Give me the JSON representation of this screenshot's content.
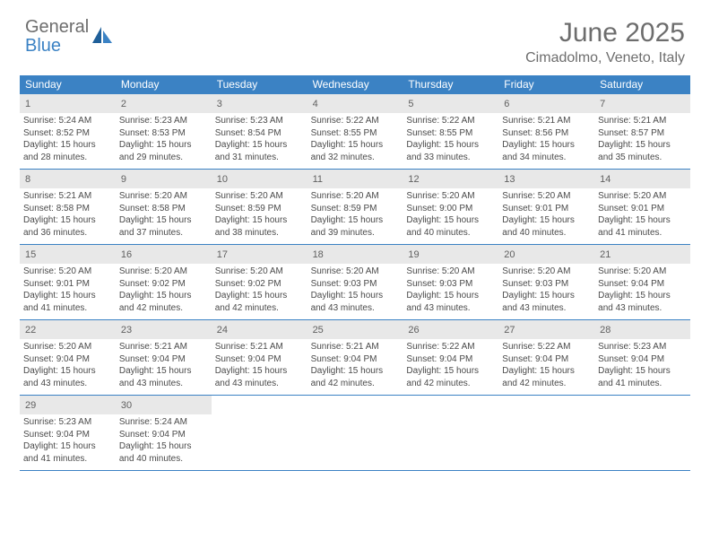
{
  "logo": {
    "text_general": "General",
    "text_blue": "Blue"
  },
  "title": "June 2025",
  "location": "Cimadolmo, Veneto, Italy",
  "colors": {
    "header_bar": "#3b82c4",
    "header_text": "#ffffff",
    "daynum_bg": "#e8e8e8",
    "daynum_text": "#606060",
    "info_text": "#4a4a4a",
    "title_text": "#6d6d6d",
    "rule": "#3b82c4"
  },
  "weekdays": [
    "Sunday",
    "Monday",
    "Tuesday",
    "Wednesday",
    "Thursday",
    "Friday",
    "Saturday"
  ],
  "days": [
    {
      "n": "1",
      "sunrise": "Sunrise: 5:24 AM",
      "sunset": "Sunset: 8:52 PM",
      "daylight": "Daylight: 15 hours and 28 minutes."
    },
    {
      "n": "2",
      "sunrise": "Sunrise: 5:23 AM",
      "sunset": "Sunset: 8:53 PM",
      "daylight": "Daylight: 15 hours and 29 minutes."
    },
    {
      "n": "3",
      "sunrise": "Sunrise: 5:23 AM",
      "sunset": "Sunset: 8:54 PM",
      "daylight": "Daylight: 15 hours and 31 minutes."
    },
    {
      "n": "4",
      "sunrise": "Sunrise: 5:22 AM",
      "sunset": "Sunset: 8:55 PM",
      "daylight": "Daylight: 15 hours and 32 minutes."
    },
    {
      "n": "5",
      "sunrise": "Sunrise: 5:22 AM",
      "sunset": "Sunset: 8:55 PM",
      "daylight": "Daylight: 15 hours and 33 minutes."
    },
    {
      "n": "6",
      "sunrise": "Sunrise: 5:21 AM",
      "sunset": "Sunset: 8:56 PM",
      "daylight": "Daylight: 15 hours and 34 minutes."
    },
    {
      "n": "7",
      "sunrise": "Sunrise: 5:21 AM",
      "sunset": "Sunset: 8:57 PM",
      "daylight": "Daylight: 15 hours and 35 minutes."
    },
    {
      "n": "8",
      "sunrise": "Sunrise: 5:21 AM",
      "sunset": "Sunset: 8:58 PM",
      "daylight": "Daylight: 15 hours and 36 minutes."
    },
    {
      "n": "9",
      "sunrise": "Sunrise: 5:20 AM",
      "sunset": "Sunset: 8:58 PM",
      "daylight": "Daylight: 15 hours and 37 minutes."
    },
    {
      "n": "10",
      "sunrise": "Sunrise: 5:20 AM",
      "sunset": "Sunset: 8:59 PM",
      "daylight": "Daylight: 15 hours and 38 minutes."
    },
    {
      "n": "11",
      "sunrise": "Sunrise: 5:20 AM",
      "sunset": "Sunset: 8:59 PM",
      "daylight": "Daylight: 15 hours and 39 minutes."
    },
    {
      "n": "12",
      "sunrise": "Sunrise: 5:20 AM",
      "sunset": "Sunset: 9:00 PM",
      "daylight": "Daylight: 15 hours and 40 minutes."
    },
    {
      "n": "13",
      "sunrise": "Sunrise: 5:20 AM",
      "sunset": "Sunset: 9:01 PM",
      "daylight": "Daylight: 15 hours and 40 minutes."
    },
    {
      "n": "14",
      "sunrise": "Sunrise: 5:20 AM",
      "sunset": "Sunset: 9:01 PM",
      "daylight": "Daylight: 15 hours and 41 minutes."
    },
    {
      "n": "15",
      "sunrise": "Sunrise: 5:20 AM",
      "sunset": "Sunset: 9:01 PM",
      "daylight": "Daylight: 15 hours and 41 minutes."
    },
    {
      "n": "16",
      "sunrise": "Sunrise: 5:20 AM",
      "sunset": "Sunset: 9:02 PM",
      "daylight": "Daylight: 15 hours and 42 minutes."
    },
    {
      "n": "17",
      "sunrise": "Sunrise: 5:20 AM",
      "sunset": "Sunset: 9:02 PM",
      "daylight": "Daylight: 15 hours and 42 minutes."
    },
    {
      "n": "18",
      "sunrise": "Sunrise: 5:20 AM",
      "sunset": "Sunset: 9:03 PM",
      "daylight": "Daylight: 15 hours and 43 minutes."
    },
    {
      "n": "19",
      "sunrise": "Sunrise: 5:20 AM",
      "sunset": "Sunset: 9:03 PM",
      "daylight": "Daylight: 15 hours and 43 minutes."
    },
    {
      "n": "20",
      "sunrise": "Sunrise: 5:20 AM",
      "sunset": "Sunset: 9:03 PM",
      "daylight": "Daylight: 15 hours and 43 minutes."
    },
    {
      "n": "21",
      "sunrise": "Sunrise: 5:20 AM",
      "sunset": "Sunset: 9:04 PM",
      "daylight": "Daylight: 15 hours and 43 minutes."
    },
    {
      "n": "22",
      "sunrise": "Sunrise: 5:20 AM",
      "sunset": "Sunset: 9:04 PM",
      "daylight": "Daylight: 15 hours and 43 minutes."
    },
    {
      "n": "23",
      "sunrise": "Sunrise: 5:21 AM",
      "sunset": "Sunset: 9:04 PM",
      "daylight": "Daylight: 15 hours and 43 minutes."
    },
    {
      "n": "24",
      "sunrise": "Sunrise: 5:21 AM",
      "sunset": "Sunset: 9:04 PM",
      "daylight": "Daylight: 15 hours and 43 minutes."
    },
    {
      "n": "25",
      "sunrise": "Sunrise: 5:21 AM",
      "sunset": "Sunset: 9:04 PM",
      "daylight": "Daylight: 15 hours and 42 minutes."
    },
    {
      "n": "26",
      "sunrise": "Sunrise: 5:22 AM",
      "sunset": "Sunset: 9:04 PM",
      "daylight": "Daylight: 15 hours and 42 minutes."
    },
    {
      "n": "27",
      "sunrise": "Sunrise: 5:22 AM",
      "sunset": "Sunset: 9:04 PM",
      "daylight": "Daylight: 15 hours and 42 minutes."
    },
    {
      "n": "28",
      "sunrise": "Sunrise: 5:23 AM",
      "sunset": "Sunset: 9:04 PM",
      "daylight": "Daylight: 15 hours and 41 minutes."
    },
    {
      "n": "29",
      "sunrise": "Sunrise: 5:23 AM",
      "sunset": "Sunset: 9:04 PM",
      "daylight": "Daylight: 15 hours and 41 minutes."
    },
    {
      "n": "30",
      "sunrise": "Sunrise: 5:24 AM",
      "sunset": "Sunset: 9:04 PM",
      "daylight": "Daylight: 15 hours and 40 minutes."
    }
  ]
}
